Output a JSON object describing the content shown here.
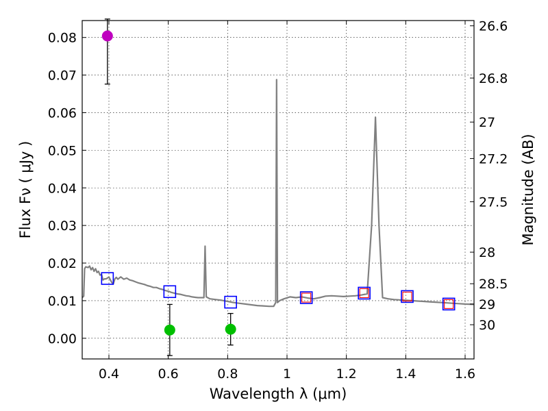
{
  "chart_data": {
    "type": "scatter",
    "xlabel": "Wavelength  λ (μm)",
    "ylabel": "Flux  Fν  ( μJy )",
    "ylabel_right": "Magnitude (AB)",
    "xlim": [
      0.31,
      1.63
    ],
    "ylim": [
      -0.0055,
      0.0845
    ],
    "grid": true,
    "x_ticks": [
      0.4,
      0.6,
      0.8,
      1.0,
      1.2,
      1.4,
      1.6
    ],
    "x_tick_labels": [
      "0.4",
      "0.6",
      "0.8",
      "1",
      "1.2",
      "1.4",
      "1.6"
    ],
    "y_ticks": [
      0.0,
      0.01,
      0.02,
      0.03,
      0.04,
      0.05,
      0.06,
      0.07,
      0.08
    ],
    "y_tick_labels": [
      "0.00",
      "0.01",
      "0.02",
      "0.03",
      "0.04",
      "0.05",
      "0.06",
      "0.07",
      "0.08"
    ],
    "right_ticks": [
      {
        "flux": 0.0831,
        "label": "26.6"
      },
      {
        "flux": 0.0692,
        "label": "26.8"
      },
      {
        "flux": 0.0575,
        "label": "27"
      },
      {
        "flux": 0.0478,
        "label": "27.2"
      },
      {
        "flux": 0.0363,
        "label": "27.5"
      },
      {
        "flux": 0.0229,
        "label": "28"
      },
      {
        "flux": 0.0145,
        "label": "28.5"
      },
      {
        "flux": 0.0091,
        "label": "29"
      },
      {
        "flux": 0.0036,
        "label": "30"
      }
    ],
    "series": [
      {
        "name": "SED model",
        "kind": "line",
        "color": "#808080",
        "points": [
          [
            0.31,
            0.0108
          ],
          [
            0.315,
            0.0112
          ],
          [
            0.318,
            0.0185
          ],
          [
            0.322,
            0.019
          ],
          [
            0.33,
            0.0188
          ],
          [
            0.335,
            0.0192
          ],
          [
            0.34,
            0.0182
          ],
          [
            0.345,
            0.0188
          ],
          [
            0.35,
            0.0178
          ],
          [
            0.355,
            0.0185
          ],
          [
            0.36,
            0.0175
          ],
          [
            0.365,
            0.0178
          ],
          [
            0.37,
            0.0168
          ],
          [
            0.375,
            0.017
          ],
          [
            0.38,
            0.0155
          ],
          [
            0.385,
            0.0158
          ],
          [
            0.39,
            0.0158
          ],
          [
            0.395,
            0.016
          ],
          [
            0.4,
            0.0163
          ],
          [
            0.405,
            0.0155
          ],
          [
            0.41,
            0.0148
          ],
          [
            0.415,
            0.0145
          ],
          [
            0.42,
            0.0158
          ],
          [
            0.425,
            0.0162
          ],
          [
            0.43,
            0.0157
          ],
          [
            0.44,
            0.0163
          ],
          [
            0.45,
            0.0157
          ],
          [
            0.46,
            0.016
          ],
          [
            0.47,
            0.0155
          ],
          [
            0.48,
            0.0153
          ],
          [
            0.49,
            0.015
          ],
          [
            0.5,
            0.0147
          ],
          [
            0.51,
            0.0145
          ],
          [
            0.52,
            0.0143
          ],
          [
            0.53,
            0.014
          ],
          [
            0.54,
            0.0138
          ],
          [
            0.55,
            0.0135
          ],
          [
            0.56,
            0.0135
          ],
          [
            0.57,
            0.0132
          ],
          [
            0.58,
            0.013
          ],
          [
            0.59,
            0.0127
          ],
          [
            0.6,
            0.0125
          ],
          [
            0.61,
            0.0122
          ],
          [
            0.62,
            0.012
          ],
          [
            0.63,
            0.0118
          ],
          [
            0.64,
            0.0117
          ],
          [
            0.65,
            0.0115
          ],
          [
            0.66,
            0.0113
          ],
          [
            0.67,
            0.0112
          ],
          [
            0.68,
            0.011
          ],
          [
            0.69,
            0.0109
          ],
          [
            0.7,
            0.0108
          ],
          [
            0.71,
            0.0108
          ],
          [
            0.72,
            0.0108
          ],
          [
            0.722,
            0.0175
          ],
          [
            0.724,
            0.0245
          ],
          [
            0.726,
            0.0175
          ],
          [
            0.728,
            0.011
          ],
          [
            0.74,
            0.0105
          ],
          [
            0.76,
            0.0103
          ],
          [
            0.78,
            0.0101
          ],
          [
            0.8,
            0.0098
          ],
          [
            0.82,
            0.0095
          ],
          [
            0.84,
            0.0093
          ],
          [
            0.86,
            0.0091
          ],
          [
            0.88,
            0.0089
          ],
          [
            0.9,
            0.0087
          ],
          [
            0.92,
            0.0086
          ],
          [
            0.94,
            0.0085
          ],
          [
            0.955,
            0.0085
          ],
          [
            0.962,
            0.0095
          ],
          [
            0.965,
            0.0688
          ],
          [
            0.968,
            0.0095
          ],
          [
            0.975,
            0.01
          ],
          [
            0.99,
            0.0105
          ],
          [
            1.01,
            0.011
          ],
          [
            1.03,
            0.0108
          ],
          [
            1.05,
            0.011
          ],
          [
            1.07,
            0.0107
          ],
          [
            1.09,
            0.0105
          ],
          [
            1.11,
            0.0108
          ],
          [
            1.13,
            0.0112
          ],
          [
            1.15,
            0.0113
          ],
          [
            1.17,
            0.0112
          ],
          [
            1.19,
            0.0111
          ],
          [
            1.21,
            0.0112
          ],
          [
            1.23,
            0.0113
          ],
          [
            1.25,
            0.0115
          ],
          [
            1.27,
            0.0118
          ],
          [
            1.285,
            0.03
          ],
          [
            1.298,
            0.0588
          ],
          [
            1.31,
            0.03
          ],
          [
            1.322,
            0.0108
          ],
          [
            1.34,
            0.0105
          ],
          [
            1.36,
            0.0103
          ],
          [
            1.38,
            0.0102
          ],
          [
            1.4,
            0.0101
          ],
          [
            1.42,
            0.01
          ],
          [
            1.44,
            0.0099
          ],
          [
            1.46,
            0.0098
          ],
          [
            1.48,
            0.0097
          ],
          [
            1.5,
            0.0096
          ],
          [
            1.52,
            0.0095
          ],
          [
            1.54,
            0.0094
          ],
          [
            1.56,
            0.0093
          ],
          [
            1.58,
            0.0092
          ],
          [
            1.6,
            0.0091
          ],
          [
            1.63,
            0.009
          ]
        ]
      },
      {
        "name": "blue squares",
        "kind": "open-square",
        "color": "#0000ff",
        "points": [
          [
            0.395,
            0.0159
          ],
          [
            0.605,
            0.0124
          ],
          [
            0.81,
            0.0096
          ],
          [
            1.065,
            0.0108
          ],
          [
            1.26,
            0.012
          ],
          [
            1.405,
            0.0111
          ],
          [
            1.545,
            0.0091
          ]
        ]
      },
      {
        "name": "red squares",
        "kind": "open-square-small",
        "color": "#ff0000",
        "points": [
          [
            1.065,
            0.0108
          ],
          [
            1.26,
            0.012
          ],
          [
            1.405,
            0.0111
          ],
          [
            1.545,
            0.0091
          ]
        ]
      },
      {
        "name": "magenta point",
        "kind": "filled-circle",
        "color": "#bf00bf",
        "points": [
          {
            "x": 0.395,
            "y": 0.0804,
            "err_lo": 0.0128,
            "err_hi": 0.0045
          }
        ]
      },
      {
        "name": "green points",
        "kind": "filled-circle",
        "color": "#00bf00",
        "points": [
          {
            "x": 0.605,
            "y": 0.0022,
            "err_lo": 0.0068,
            "err_hi": 0.0068
          },
          {
            "x": 0.81,
            "y": 0.0024,
            "err_lo": 0.0042,
            "err_hi": 0.0042
          }
        ]
      }
    ]
  }
}
